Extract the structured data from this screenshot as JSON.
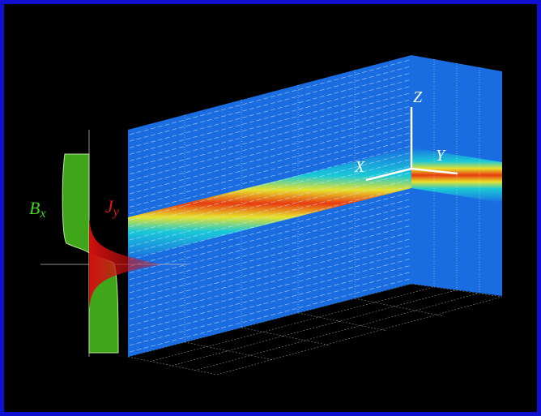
{
  "field_labels": [
    {
      "symbol": "B",
      "subscript": "x"
    },
    {
      "symbol": "J",
      "subscript": "y"
    }
  ],
  "axes": [
    "X",
    "Y",
    "Z"
  ]
}
